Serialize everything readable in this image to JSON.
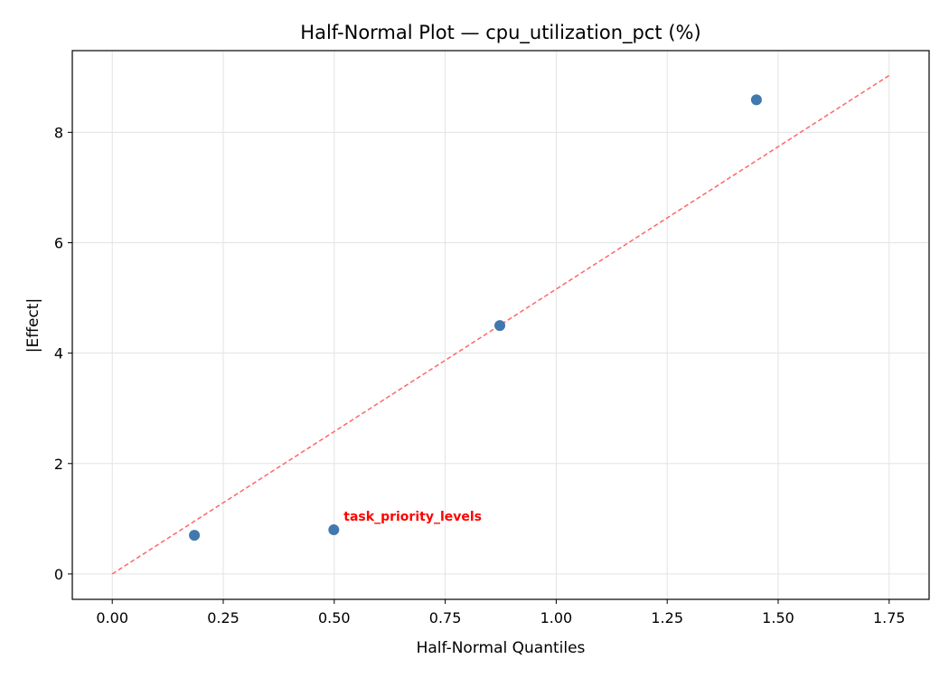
{
  "chart_data": {
    "type": "scatter",
    "title": "Half-Normal Plot — cpu_utilization_pct (%)",
    "xlabel": "Half-Normal Quantiles",
    "ylabel": "|Effect|",
    "xlim": [
      -0.09,
      1.84
    ],
    "ylim": [
      -0.46,
      9.48
    ],
    "xticks": [
      0.0,
      0.25,
      0.5,
      0.75,
      1.0,
      1.25,
      1.5,
      1.75
    ],
    "xtick_labels": [
      "0.00",
      "0.25",
      "0.50",
      "0.75",
      "1.00",
      "1.25",
      "1.50",
      "1.75"
    ],
    "yticks": [
      0,
      2,
      4,
      6,
      8
    ],
    "ytick_labels": [
      "0",
      "2",
      "4",
      "6",
      "8"
    ],
    "grid": true,
    "points": [
      {
        "x": 0.185,
        "y": 0.7
      },
      {
        "x": 0.499,
        "y": 0.8,
        "label": "task_priority_levels"
      },
      {
        "x": 0.873,
        "y": 4.5
      },
      {
        "x": 1.451,
        "y": 8.59
      }
    ],
    "reference_line": {
      "x": [
        0.0,
        1.75
      ],
      "y": [
        0.0,
        9.03
      ],
      "style": "dashed"
    },
    "colors": {
      "points": "#4178ae",
      "reference_line": "#ff6666",
      "label": "#ff0000"
    }
  }
}
